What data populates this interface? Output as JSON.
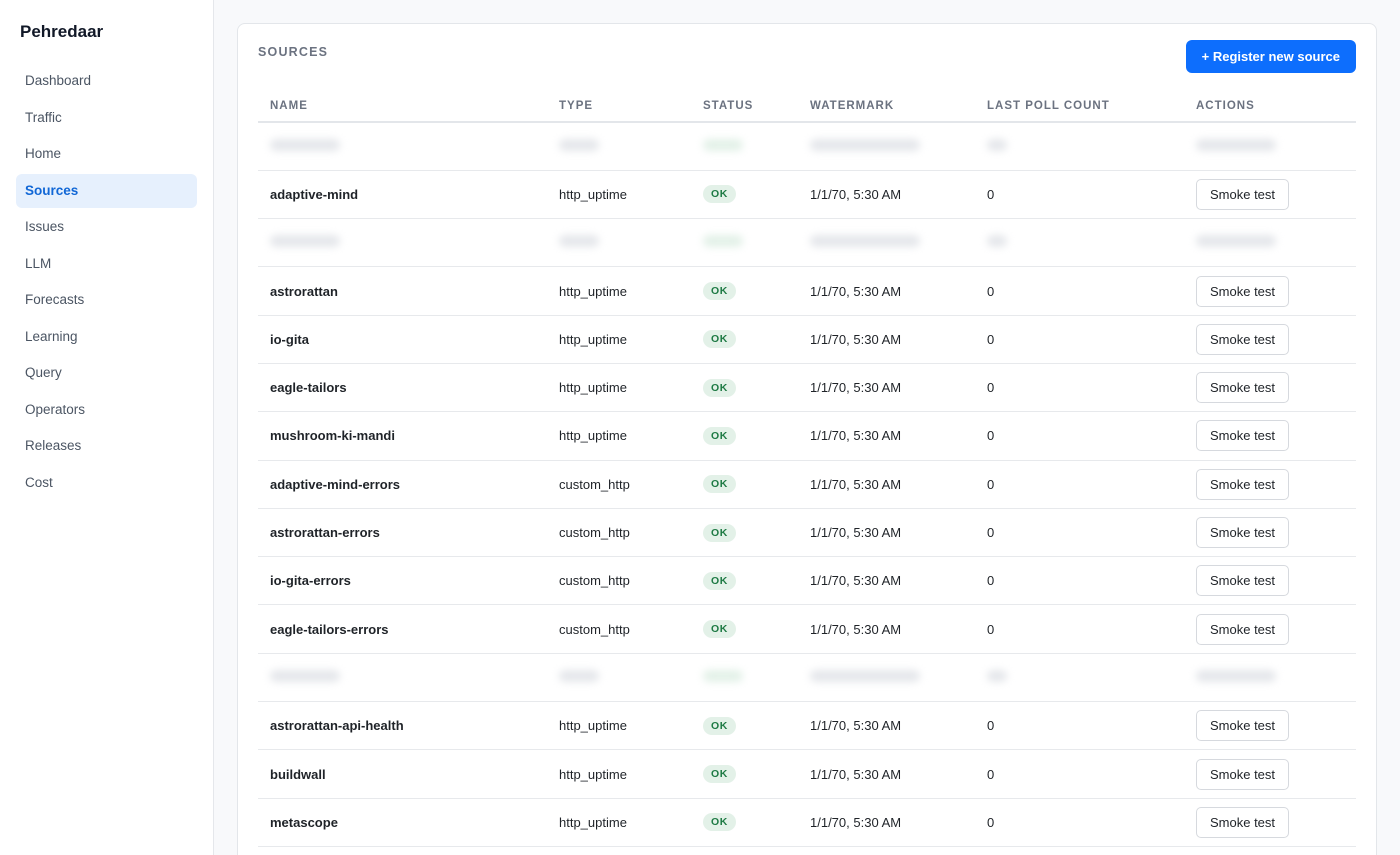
{
  "app": {
    "title": "Pehredaar"
  },
  "sidebar": {
    "items": [
      {
        "label": "Dashboard",
        "active": false
      },
      {
        "label": "Traffic",
        "active": false
      },
      {
        "label": "Home",
        "active": false
      },
      {
        "label": "Sources",
        "active": true
      },
      {
        "label": "Issues",
        "active": false
      },
      {
        "label": "LLM",
        "active": false
      },
      {
        "label": "Forecasts",
        "active": false
      },
      {
        "label": "Learning",
        "active": false
      },
      {
        "label": "Query",
        "active": false
      },
      {
        "label": "Operators",
        "active": false
      },
      {
        "label": "Releases",
        "active": false
      },
      {
        "label": "Cost",
        "active": false
      }
    ]
  },
  "sources": {
    "title": "SOURCES",
    "register_label": "+ Register new source",
    "columns": [
      "NAME",
      "TYPE",
      "STATUS",
      "WATERMARK",
      "LAST POLL COUNT",
      "ACTIONS"
    ],
    "rows": [
      {
        "blurred": true
      },
      {
        "name": "adaptive-mind",
        "type": "http_uptime",
        "status": "OK",
        "watermark": "1/1/70, 5:30 AM",
        "last_poll_count": "0",
        "action": "Smoke test"
      },
      {
        "blurred": true
      },
      {
        "name": "astrorattan",
        "type": "http_uptime",
        "status": "OK",
        "watermark": "1/1/70, 5:30 AM",
        "last_poll_count": "0",
        "action": "Smoke test"
      },
      {
        "name": "io-gita",
        "type": "http_uptime",
        "status": "OK",
        "watermark": "1/1/70, 5:30 AM",
        "last_poll_count": "0",
        "action": "Smoke test"
      },
      {
        "name": "eagle-tailors",
        "type": "http_uptime",
        "status": "OK",
        "watermark": "1/1/70, 5:30 AM",
        "last_poll_count": "0",
        "action": "Smoke test"
      },
      {
        "name": "mushroom-ki-mandi",
        "type": "http_uptime",
        "status": "OK",
        "watermark": "1/1/70, 5:30 AM",
        "last_poll_count": "0",
        "action": "Smoke test"
      },
      {
        "name": "adaptive-mind-errors",
        "type": "custom_http",
        "status": "OK",
        "watermark": "1/1/70, 5:30 AM",
        "last_poll_count": "0",
        "action": "Smoke test"
      },
      {
        "name": "astrorattan-errors",
        "type": "custom_http",
        "status": "OK",
        "watermark": "1/1/70, 5:30 AM",
        "last_poll_count": "0",
        "action": "Smoke test"
      },
      {
        "name": "io-gita-errors",
        "type": "custom_http",
        "status": "OK",
        "watermark": "1/1/70, 5:30 AM",
        "last_poll_count": "0",
        "action": "Smoke test"
      },
      {
        "name": "eagle-tailors-errors",
        "type": "custom_http",
        "status": "OK",
        "watermark": "1/1/70, 5:30 AM",
        "last_poll_count": "0",
        "action": "Smoke test"
      },
      {
        "blurred": true
      },
      {
        "name": "astrorattan-api-health",
        "type": "http_uptime",
        "status": "OK",
        "watermark": "1/1/70, 5:30 AM",
        "last_poll_count": "0",
        "action": "Smoke test"
      },
      {
        "name": "buildwall",
        "type": "http_uptime",
        "status": "OK",
        "watermark": "1/1/70, 5:30 AM",
        "last_poll_count": "0",
        "action": "Smoke test"
      },
      {
        "name": "metascope",
        "type": "http_uptime",
        "status": "OK",
        "watermark": "1/1/70, 5:30 AM",
        "last_poll_count": "0",
        "action": "Smoke test"
      }
    ]
  },
  "colors": {
    "accent": "#0d6efd",
    "active_nav_bg": "#e6f0fd",
    "active_nav_text": "#1167d6",
    "ok_badge_bg": "#e3f1e8",
    "ok_badge_text": "#1e7a44"
  }
}
